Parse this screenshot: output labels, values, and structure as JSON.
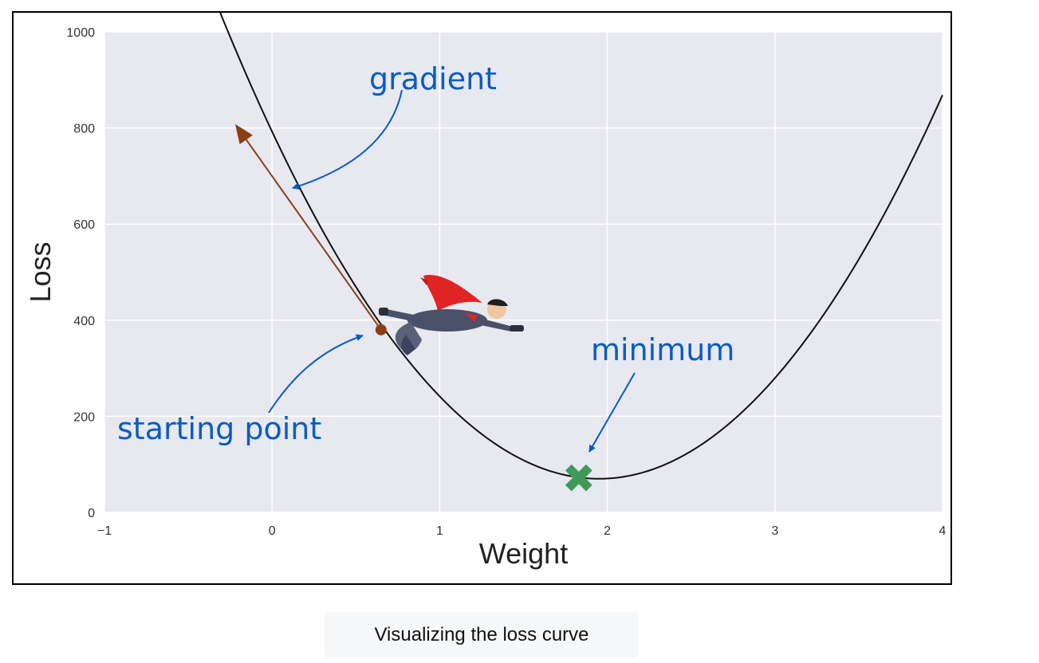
{
  "chart_data": {
    "type": "line",
    "title": "",
    "xlabel": "Weight",
    "ylabel": "Loss",
    "xlim": [
      -1,
      4
    ],
    "ylim": [
      0,
      1000
    ],
    "xticks": [
      -1,
      0,
      1,
      2,
      3,
      4
    ],
    "xtick_labels": [
      "−1",
      "0",
      "1",
      "2",
      "3",
      "4"
    ],
    "yticks": [
      0,
      200,
      400,
      600,
      800,
      1000
    ],
    "ytick_labels": [
      "0",
      "200",
      "400",
      "600",
      "800",
      "1000"
    ],
    "grid": true,
    "series": [
      {
        "curve": "quadratic",
        "a": 190,
        "vertex_x": 1.95,
        "vertex_y": 70,
        "x_range": [
          -0.45,
          4.0
        ]
      }
    ],
    "starting_point": {
      "x": 0.65,
      "y": 380
    },
    "gradient_arrow": {
      "from": {
        "x": 0.65,
        "y": 380
      },
      "to": {
        "x": -0.22,
        "y": 808
      }
    },
    "minimum_marker": {
      "x": 1.83,
      "y": 72
    },
    "annotations": [
      {
        "id": "gradient",
        "text": "gradient"
      },
      {
        "id": "starting",
        "text": "starting point"
      },
      {
        "id": "minimum",
        "text": "minimum"
      }
    ],
    "colors": {
      "plot_bg": "#e8e8f0",
      "grid": "#ffffff",
      "curve": "#111111",
      "gradient_arrow": "#8b3f12",
      "annotation": "#0a5cc2",
      "minimum_marker": "#3f9a5a"
    },
    "decoration": "flying-superhero-illustration"
  },
  "caption": "Visualizing the loss curve"
}
